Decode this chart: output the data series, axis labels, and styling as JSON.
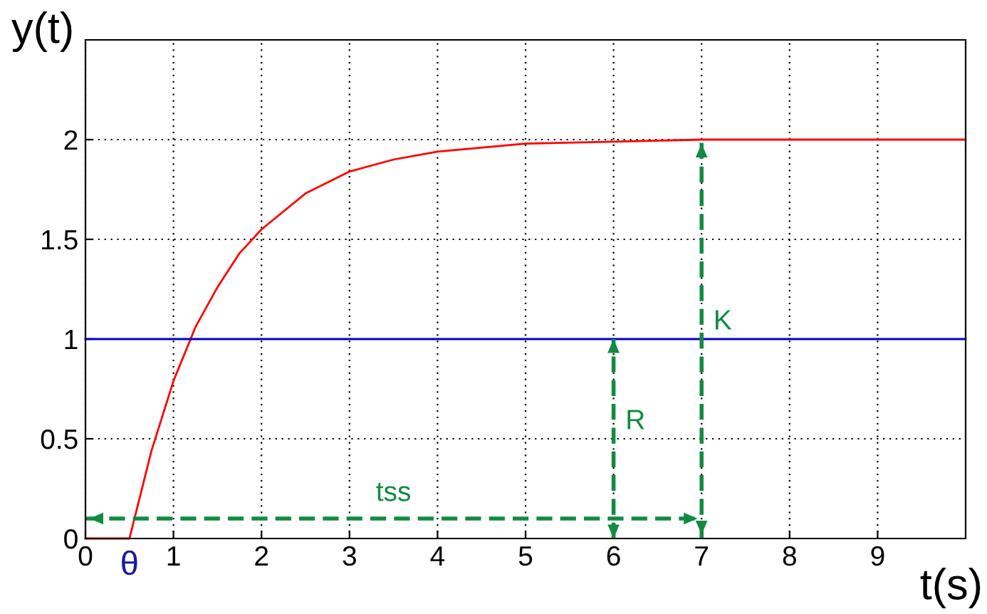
{
  "chart_data": {
    "type": "line",
    "xlabel": "t(s)",
    "ylabel": "y(t)",
    "xlim": [
      0,
      10
    ],
    "ylim": [
      0,
      2.5
    ],
    "xticks": [
      0,
      1,
      2,
      3,
      4,
      5,
      6,
      7,
      8,
      9
    ],
    "yticks": [
      0,
      0.5,
      1,
      1.5,
      2
    ],
    "grid": true,
    "line_style": "solid",
    "marker": "none",
    "series": [
      {
        "color": "#ff0000",
        "x": [
          0,
          0.5,
          0.75,
          1,
          1.25,
          1.5,
          1.75,
          2,
          2.5,
          3,
          3.5,
          4,
          5,
          6,
          7,
          8,
          10
        ],
        "values": [
          0,
          0,
          0.44,
          0.79,
          1.06,
          1.26,
          1.43,
          1.55,
          1.73,
          1.84,
          1.9,
          1.94,
          1.98,
          1.99,
          2,
          2,
          2
        ]
      },
      {
        "color": "#0000cc",
        "x": [
          0,
          10
        ],
        "values": [
          1,
          1
        ]
      },
      {
        "name": "tss",
        "color": "#138a43",
        "line_style": "dashed",
        "x": [
          0,
          7
        ],
        "values": [
          0.1,
          0.1
        ]
      },
      {
        "name": "R",
        "color": "#138a43",
        "line_style": "dashed",
        "x": [
          6,
          6
        ],
        "values": [
          0,
          1
        ]
      },
      {
        "name": "K",
        "color": "#138a43",
        "line_style": "dashed",
        "x": [
          7,
          7
        ],
        "values": [
          0,
          2
        ]
      }
    ],
    "annotations": [
      {
        "text": "θ",
        "x": 0.5,
        "y": 0
      }
    ]
  }
}
